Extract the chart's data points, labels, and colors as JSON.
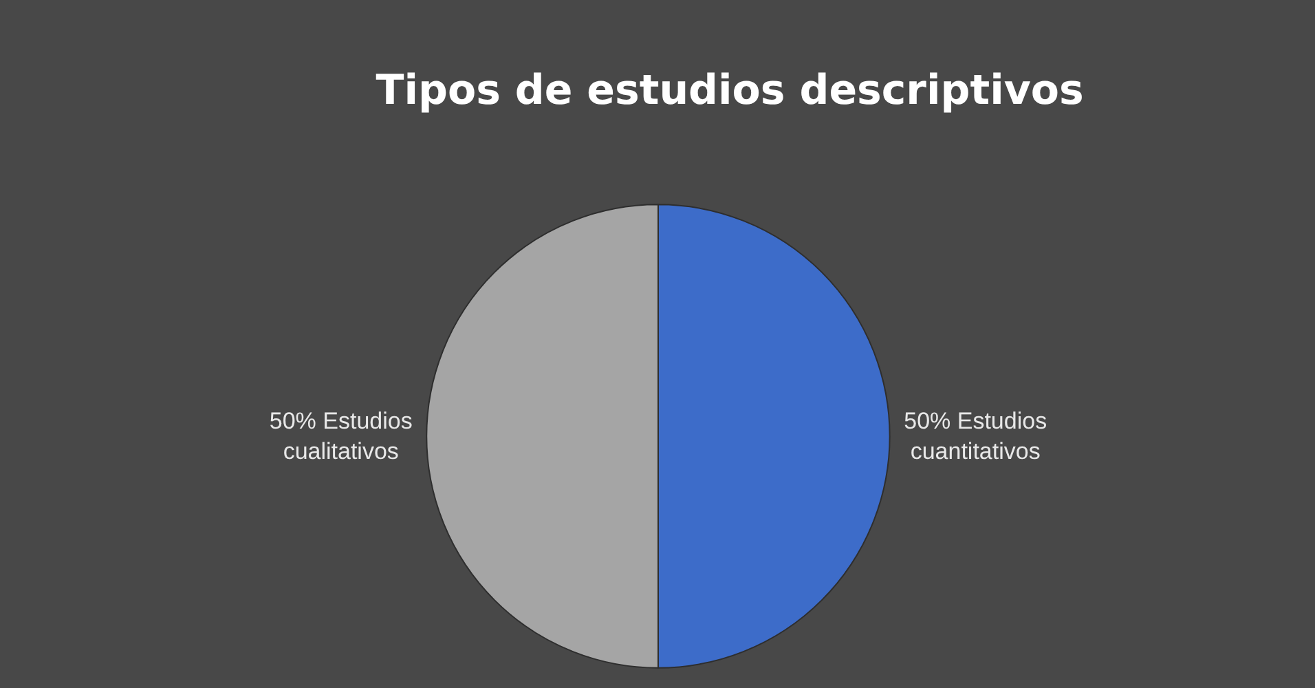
{
  "chart_data": {
    "type": "pie",
    "title": "Tipos de estudios descriptivos",
    "categories": [
      "Estudios cuantitativos",
      "Estudios cualitativos"
    ],
    "values": [
      50,
      50
    ],
    "colors": [
      "#3d6cc9",
      "#a5a5a5"
    ],
    "value_labels": [
      "50%",
      "50%"
    ],
    "legend": false
  }
}
